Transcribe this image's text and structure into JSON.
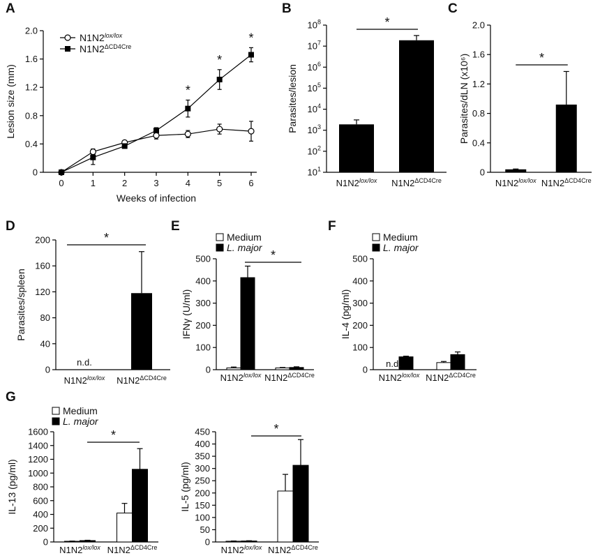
{
  "colors": {
    "black": "#000000",
    "white": "#ffffff",
    "gray": "#777777"
  },
  "chart_data": [
    {
      "panel": "A",
      "type": "line",
      "x": [
        0,
        1,
        2,
        3,
        4,
        5,
        6
      ],
      "xticks": [
        "0",
        "1",
        "2",
        "3",
        "4",
        "5",
        "6"
      ],
      "yticks": [
        "0",
        "0.4",
        "0.8",
        "1.2",
        "1.6",
        "2.0"
      ],
      "xlabel": "Weeks of infection",
      "ylabel": "Lesion size (mm)",
      "ylim": [
        0,
        2.0
      ],
      "legend_position": "top-left",
      "series": [
        {
          "name_base": "N1N2",
          "name_sup": "lox/lox",
          "marker": "open-circle",
          "values": [
            0,
            0.29,
            0.42,
            0.52,
            0.54,
            0.61,
            0.58
          ],
          "errors": [
            0,
            0.04,
            0.03,
            0.05,
            0.05,
            0.07,
            0.14
          ]
        },
        {
          "name_base": "N1N2",
          "name_sup": "ΔCD4Cre",
          "marker": "filled-square",
          "values": [
            0,
            0.21,
            0.37,
            0.59,
            0.9,
            1.31,
            1.66
          ],
          "errors": [
            0,
            0.1,
            0.03,
            0.04,
            0.12,
            0.14,
            0.1
          ]
        }
      ],
      "stars": [
        {
          "x": 4,
          "text": "*"
        },
        {
          "x": 5,
          "text": "*"
        },
        {
          "x": 6,
          "text": "*"
        }
      ]
    },
    {
      "panel": "B",
      "type": "bar",
      "scale": "log",
      "ylabel": "Parasites/lesion",
      "ylim": [
        10,
        100000000
      ],
      "yticks": [
        {
          "base": "10",
          "exp": "1",
          "value": 10
        },
        {
          "base": "10",
          "exp": "2",
          "value": 100
        },
        {
          "base": "10",
          "exp": "3",
          "value": 1000
        },
        {
          "base": "10",
          "exp": "4",
          "value": 10000
        },
        {
          "base": "10",
          "exp": "5",
          "value": 100000
        },
        {
          "base": "10",
          "exp": "6",
          "value": 1000000
        },
        {
          "base": "10",
          "exp": "7",
          "value": 10000000
        },
        {
          "base": "10",
          "exp": "8",
          "value": 100000000
        }
      ],
      "categories": [
        {
          "base": "N1N2",
          "sup": "lox/lox",
          "italic": true
        },
        {
          "base": "N1N2",
          "sup": "ΔCD4Cre",
          "italic": false
        }
      ],
      "values": [
        1900,
        19000000
      ],
      "errors": [
        1200,
        13000000
      ],
      "star": "*"
    },
    {
      "panel": "C",
      "type": "bar",
      "ylabel": "Parasites/dLN (x10⁶)",
      "ylim": [
        0,
        2.0
      ],
      "yticks": [
        "0",
        "0.4",
        "0.8",
        "1.2",
        "1.6",
        "2.0"
      ],
      "categories": [
        {
          "base": "N1N2",
          "sup": "lox/lox",
          "italic": true
        },
        {
          "base": "N1N2",
          "sup": "ΔCD4Cre",
          "italic": false
        }
      ],
      "values": [
        0.04,
        0.92
      ],
      "errors": [
        0.005,
        0.45
      ],
      "star": "*"
    },
    {
      "panel": "D",
      "type": "bar",
      "ylabel": "Parasites/spleen",
      "ylim": [
        0,
        200
      ],
      "yticks": [
        "0",
        "40",
        "80",
        "120",
        "160",
        "200"
      ],
      "categories": [
        {
          "base": "N1N2",
          "sup": "lox/lox",
          "italic": true
        },
        {
          "base": "N1N2",
          "sup": "ΔCD4Cre",
          "italic": false
        }
      ],
      "values": [
        0,
        118
      ],
      "errors": [
        0,
        64
      ],
      "nd": "n.d.",
      "star": "*"
    },
    {
      "panel": "E",
      "type": "grouped-bar",
      "ylabel": "IFNγ (U/ml)",
      "ylim": [
        0,
        500
      ],
      "yticks": [
        "0",
        "100",
        "200",
        "300",
        "400",
        "500"
      ],
      "categories": [
        {
          "base": "N1N2",
          "sup": "lox/lox",
          "italic": true
        },
        {
          "base": "N1N2",
          "sup": "ΔCD4Cre",
          "italic": false
        }
      ],
      "legend": [
        {
          "label": "Medium",
          "italic": false
        },
        {
          "label": "L. major",
          "italic": true
        }
      ],
      "series": [
        {
          "name": "Medium",
          "values": [
            8,
            8
          ],
          "errors": [
            4,
            2
          ]
        },
        {
          "name": "L. major",
          "values": [
            415,
            10
          ],
          "errors": [
            52,
            3
          ]
        }
      ],
      "star": "*"
    },
    {
      "panel": "F",
      "type": "grouped-bar",
      "ylabel": "IL-4 (pg/ml)",
      "ylim": [
        0,
        500
      ],
      "yticks": [
        "0",
        "100",
        "200",
        "300",
        "400",
        "500"
      ],
      "categories": [
        {
          "base": "N1N2",
          "sup": "lox/lox",
          "italic": true
        },
        {
          "base": "N1N2",
          "sup": "ΔCD4Cre",
          "italic": false
        }
      ],
      "legend": [
        {
          "label": "Medium",
          "italic": false
        },
        {
          "label": "L. major",
          "italic": true
        }
      ],
      "series": [
        {
          "name": "Medium",
          "values": [
            0,
            32
          ],
          "errors": [
            0,
            5
          ]
        },
        {
          "name": "L. major",
          "values": [
            58,
            68
          ],
          "errors": [
            3,
            12
          ]
        }
      ],
      "nd": "n.d."
    },
    {
      "panel": "G",
      "type": "grouped-bar",
      "ylabel": "IL-13 (pg/ml)",
      "ylim": [
        0,
        1600
      ],
      "yticks": [
        "0",
        "200",
        "400",
        "600",
        "800",
        "1000",
        "1200",
        "1400",
        "1600"
      ],
      "categories": [
        {
          "base": "N1N2",
          "sup": "lox/lox",
          "italic": true
        },
        {
          "base": "N1N2",
          "sup": "ΔCD4Cre",
          "italic": false
        }
      ],
      "legend": [
        {
          "label": "Medium",
          "italic": false
        },
        {
          "label": "L. major",
          "italic": true
        }
      ],
      "series": [
        {
          "name": "Medium",
          "values": [
            10,
            420
          ],
          "errors": [
            3,
            140
          ]
        },
        {
          "name": "L. major",
          "values": [
            20,
            1055
          ],
          "errors": [
            5,
            300
          ]
        }
      ],
      "star": "*"
    },
    {
      "panel": "",
      "type": "grouped-bar",
      "ylabel": "IL-5 (pg/ml)",
      "ylim": [
        0,
        450
      ],
      "yticks": [
        "0",
        "50",
        "100",
        "150",
        "200",
        "250",
        "300",
        "350",
        "400",
        "450"
      ],
      "categories": [
        {
          "base": "N1N2",
          "sup": "lox/lox",
          "italic": true
        },
        {
          "base": "N1N2",
          "sup": "ΔCD4Cre",
          "italic": false
        }
      ],
      "series": [
        {
          "name": "Medium",
          "values": [
            3,
            208
          ],
          "errors": [
            1,
            68
          ]
        },
        {
          "name": "L. major",
          "values": [
            4,
            313
          ],
          "errors": [
            1,
            105
          ]
        }
      ],
      "star": "*"
    }
  ]
}
